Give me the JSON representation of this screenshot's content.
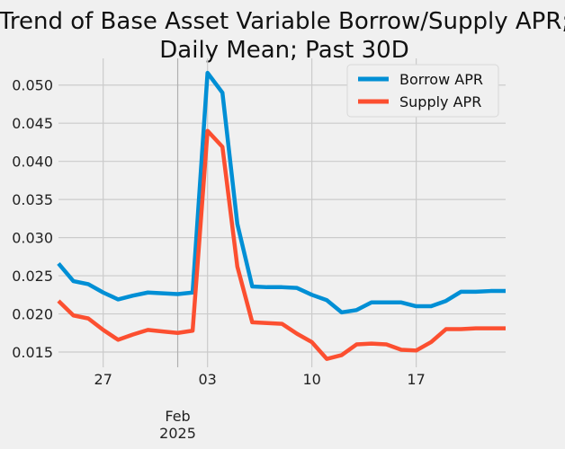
{
  "chart_data": {
    "type": "line",
    "title_lines": [
      "Trend of Base Asset Variable Borrow/Supply APR;",
      "Daily Mean; Past 30D"
    ],
    "xlabel": "",
    "ylabel": "",
    "x": [
      "2025-01-24",
      "2025-01-25",
      "2025-01-26",
      "2025-01-27",
      "2025-01-28",
      "2025-01-29",
      "2025-01-30",
      "2025-01-31",
      "2025-02-01",
      "2025-02-02",
      "2025-02-03",
      "2025-02-04",
      "2025-02-05",
      "2025-02-06",
      "2025-02-07",
      "2025-02-08",
      "2025-02-09",
      "2025-02-10",
      "2025-02-11",
      "2025-02-12",
      "2025-02-13",
      "2025-02-14",
      "2025-02-15",
      "2025-02-16",
      "2025-02-17",
      "2025-02-18",
      "2025-02-19",
      "2025-02-20",
      "2025-02-21",
      "2025-02-22",
      "2025-02-23"
    ],
    "xlim": [
      "2025-01-24",
      "2025-02-23"
    ],
    "ylim": [
      0.013,
      0.0535
    ],
    "yticks": [
      0.015,
      0.02,
      0.025,
      0.03,
      0.035,
      0.04,
      0.045,
      0.05
    ],
    "ytick_labels": [
      "0.015",
      "0.020",
      "0.025",
      "0.030",
      "0.035",
      "0.040",
      "0.045",
      "0.050"
    ],
    "xticks": [
      {
        "date": "2025-01-27",
        "label": "27"
      },
      {
        "date": "2025-02-03",
        "label": "03"
      },
      {
        "date": "2025-02-10",
        "label": "10"
      },
      {
        "date": "2025-02-17",
        "label": "17"
      }
    ],
    "month_marker": {
      "date": "2025-02-01",
      "label_line1": "Feb",
      "label_line2": "2025"
    },
    "grid": true,
    "legend_position": "top-right",
    "series": [
      {
        "name": "Borrow APR",
        "color": "#008fd5",
        "values": [
          0.0266,
          0.0243,
          0.0239,
          0.0228,
          0.0219,
          0.0224,
          0.0228,
          0.0227,
          0.0226,
          0.0228,
          0.0516,
          0.049,
          0.0318,
          0.0236,
          0.0235,
          0.0235,
          0.0234,
          0.0225,
          0.0218,
          0.0202,
          0.0205,
          0.0215,
          0.0215,
          0.0215,
          0.021,
          0.021,
          0.0217,
          0.0229,
          0.0229,
          0.023,
          0.023
        ]
      },
      {
        "name": "Supply APR",
        "color": "#fc4f30",
        "values": [
          0.0217,
          0.0198,
          0.0194,
          0.0179,
          0.0166,
          0.0173,
          0.0179,
          0.0177,
          0.0175,
          0.0178,
          0.044,
          0.0419,
          0.0262,
          0.0189,
          0.0188,
          0.0187,
          0.0174,
          0.0163,
          0.0141,
          0.0146,
          0.016,
          0.0161,
          0.016,
          0.0153,
          0.0152,
          0.0163,
          0.018,
          0.018,
          0.0181,
          0.0181,
          0.0181
        ]
      }
    ]
  }
}
